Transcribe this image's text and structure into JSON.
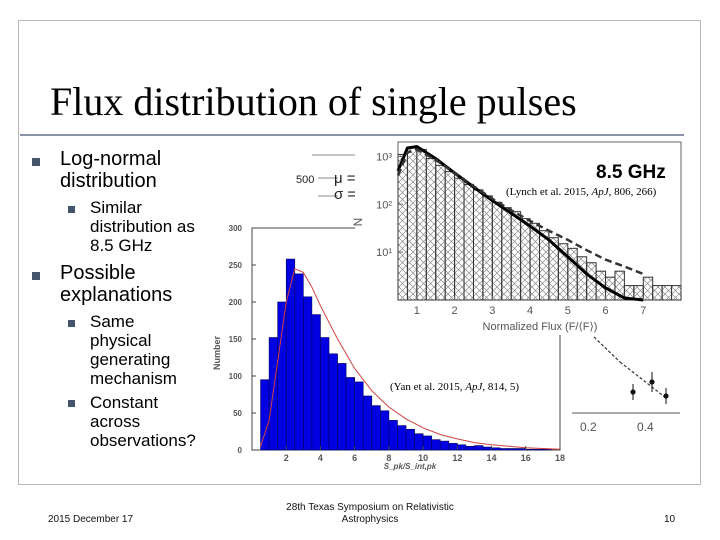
{
  "slide": {
    "title": "Flux distribution of single pulses",
    "bullets": [
      {
        "line1": "Log-normal",
        "line2": "distribution",
        "sub": [
          {
            "lines": [
              "Similar",
              "distribution as",
              "8.5 GHz"
            ]
          }
        ]
      },
      {
        "line1": "Possible",
        "line2": "explanations",
        "sub": [
          {
            "lines": [
              "Same",
              "physical",
              "generating",
              "mechanism"
            ]
          },
          {
            "lines": [
              "Constant",
              "across",
              "observations?"
            ]
          }
        ]
      }
    ],
    "footer": {
      "date": "2015 December 17",
      "event_line1": "28th Texas Symposium on Relativistic",
      "event_line2": "Astrophysics",
      "page": "10"
    }
  },
  "annotations": {
    "freq": "8.5 GHz",
    "lynch_prefix": "(Lynch et al. 2015, ",
    "lynch_journal": "ApJ",
    "lynch_suffix": ", 806, 266)",
    "yan_prefix": "(Yan et al. 2015, ",
    "yan_journal": "ApJ",
    "yan_suffix": ", 814, 5)"
  },
  "bg_plot": {
    "tick_500": "500",
    "mu": "μ =",
    "sigma": "σ =",
    "xtick_02": "0.2",
    "xtick_04": "0.4"
  },
  "chart_data": [
    {
      "type": "bar",
      "title": "",
      "xlabel": "S_pk/S_int,pk",
      "ylabel": "Number",
      "x_ticks": [
        "2",
        "4",
        "6",
        "8",
        "10",
        "12",
        "14",
        "16",
        "18"
      ],
      "y_ticks": [
        "0",
        "50",
        "100",
        "150",
        "200",
        "250",
        "300"
      ],
      "xlim": [
        0,
        18
      ],
      "ylim": [
        0,
        300
      ],
      "bin_width": 0.5,
      "bin_starts": [
        0.5,
        1.0,
        1.5,
        2.0,
        2.5,
        3.0,
        3.5,
        4.0,
        4.5,
        5.0,
        5.5,
        6.0,
        6.5,
        7.0,
        7.5,
        8.0,
        8.5,
        9.0,
        9.5,
        10.0,
        10.5,
        11.0,
        11.5,
        12.0,
        12.5,
        13.0,
        13.5,
        14.0,
        14.5,
        15.0,
        15.5,
        16.0,
        16.5,
        17.0,
        17.5
      ],
      "values": [
        95,
        152,
        200,
        258,
        238,
        207,
        183,
        152,
        130,
        117,
        98,
        92,
        73,
        60,
        53,
        40,
        33,
        28,
        22,
        19,
        14,
        12,
        9,
        7,
        5,
        6,
        4,
        3,
        2,
        2,
        2,
        1,
        1,
        1,
        0
      ],
      "fit": [
        [
          0.5,
          5
        ],
        [
          1,
          40
        ],
        [
          1.5,
          120
        ],
        [
          2,
          200
        ],
        [
          2.5,
          245
        ],
        [
          3,
          240
        ],
        [
          3.5,
          220
        ],
        [
          4,
          195
        ],
        [
          5,
          150
        ],
        [
          6,
          110
        ],
        [
          7,
          80
        ],
        [
          8,
          58
        ],
        [
          9,
          42
        ],
        [
          10,
          30
        ],
        [
          11,
          21
        ],
        [
          12,
          15
        ],
        [
          13,
          10
        ],
        [
          14,
          7
        ],
        [
          15,
          5
        ],
        [
          16,
          3
        ],
        [
          17,
          2
        ],
        [
          18,
          1
        ]
      ],
      "colors": {
        "bars": "#0000e0",
        "fit": "#d04040"
      }
    },
    {
      "type": "bar",
      "title": "",
      "xlabel": "Normalized Flux (F/⟨F⟩)",
      "ylabel": "N",
      "x_ticks": [
        "1",
        "2",
        "3",
        "4",
        "5",
        "6",
        "7"
      ],
      "y_ticks": [
        "10¹",
        "10²",
        "10³"
      ],
      "xlim": [
        0.5,
        8
      ],
      "ylim_log": [
        1,
        2000
      ],
      "log_scale_y": true,
      "bin_width": 0.25,
      "bin_starts": [
        0.5,
        0.75,
        1.0,
        1.25,
        1.5,
        1.75,
        2.0,
        2.25,
        2.5,
        2.75,
        3.0,
        3.25,
        3.5,
        3.75,
        4.0,
        4.25,
        4.5,
        4.75,
        5.0,
        5.25,
        5.5,
        5.75,
        6.0,
        6.25,
        6.5,
        6.75,
        7.0,
        7.25,
        7.5,
        7.75
      ],
      "values": [
        1100,
        1500,
        1400,
        900,
        650,
        480,
        350,
        260,
        200,
        150,
        110,
        85,
        70,
        50,
        40,
        28,
        20,
        15,
        12,
        8,
        6,
        4,
        3,
        4,
        2,
        2,
        3,
        2,
        2,
        2
      ],
      "solid_fit": [
        [
          0.5,
          500
        ],
        [
          0.75,
          1500
        ],
        [
          1.0,
          1600
        ],
        [
          1.5,
          900
        ],
        [
          2,
          450
        ],
        [
          2.5,
          230
        ],
        [
          3,
          120
        ],
        [
          3.5,
          65
        ],
        [
          4,
          35
        ],
        [
          4.5,
          18
        ],
        [
          5,
          8
        ],
        [
          5.5,
          3.5
        ],
        [
          6,
          1.8
        ],
        [
          6.5,
          1.1
        ],
        [
          7,
          1
        ]
      ],
      "dashed_fit": [
        [
          0.5,
          400
        ],
        [
          0.75,
          1200
        ],
        [
          1.0,
          1400
        ],
        [
          1.5,
          850
        ],
        [
          2,
          450
        ],
        [
          2.5,
          240
        ],
        [
          3,
          130
        ],
        [
          3.5,
          75
        ],
        [
          4,
          45
        ],
        [
          4.5,
          28
        ],
        [
          5,
          18
        ],
        [
          5.5,
          11
        ],
        [
          6,
          7
        ],
        [
          6.5,
          5
        ],
        [
          7,
          3.5
        ]
      ],
      "colors": {
        "hatch": "#707070",
        "solid": "#000000",
        "dashed": "#333333"
      }
    }
  ]
}
